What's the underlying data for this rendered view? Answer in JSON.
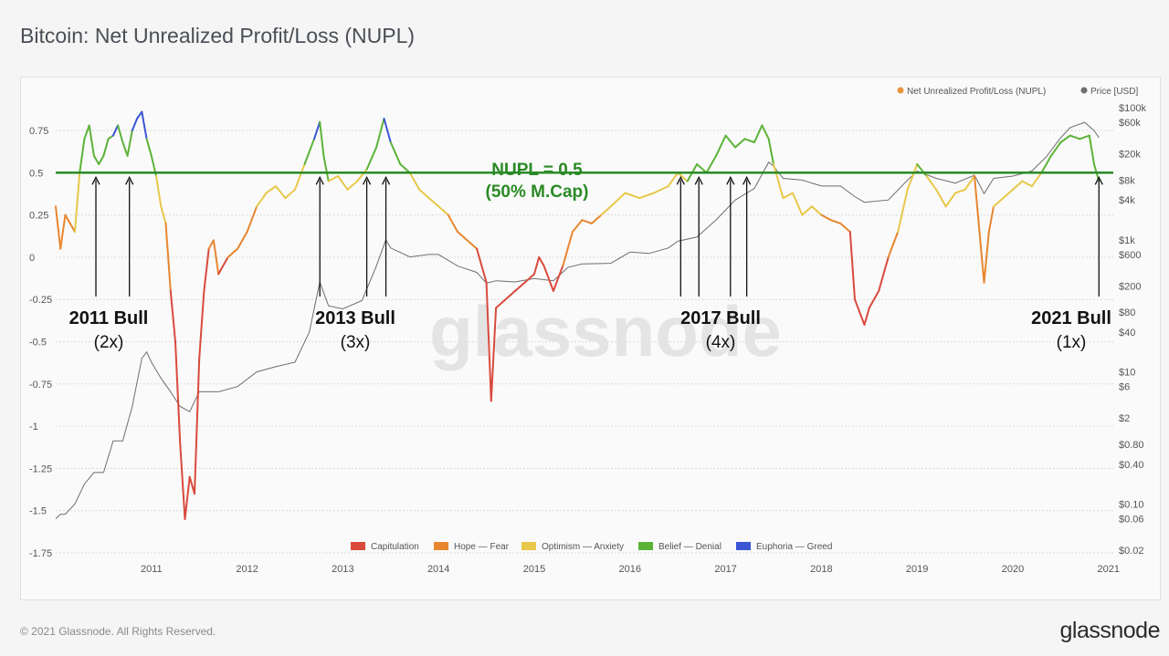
{
  "header": {
    "title": "Bitcoin: Net Unrealized Profit/Loss (NUPL)"
  },
  "footer": {
    "copyright": "© 2021 Glassnode. All Rights Reserved.",
    "brand": "glassnode"
  },
  "chart_data": {
    "type": "line",
    "title": "Bitcoin: Net Unrealized Profit/Loss (NUPL)",
    "watermark": "glassnode",
    "x_ticks": [
      "2011",
      "2012",
      "2013",
      "2014",
      "2015",
      "2016",
      "2017",
      "2018",
      "2019",
      "2020",
      "2021"
    ],
    "y_left": {
      "label": "Net Unrealized Profit/Loss (NUPL)",
      "ticks": [
        "0.75",
        "0.5",
        "0.25",
        "0",
        "-0.25",
        "-0.5",
        "-0.75",
        "-1",
        "-1.25",
        "-1.5",
        "-1.75"
      ],
      "range": [
        -1.75,
        0.9
      ]
    },
    "y_right": {
      "label": "Price [USD]",
      "scale": "log",
      "ticks": [
        "$100k",
        "$60k",
        "$20k",
        "$8k",
        "$4k",
        "$1k",
        "$600",
        "$200",
        "$80",
        "$40",
        "$10",
        "$6",
        "$2",
        "$0.80",
        "$0.40",
        "$0.10",
        "$0.06",
        "$0.02"
      ]
    },
    "legend_top": [
      {
        "name": "Net Unrealized Profit/Loss (NUPL)",
        "color": "#e8943a"
      },
      {
        "name": "Price [USD]",
        "color": "#6e6e6e"
      }
    ],
    "zones": [
      {
        "name": "Capitulation",
        "color": "#d94a3d",
        "max": 0
      },
      {
        "name": "Hope — Fear",
        "color": "#e8862f",
        "max": 0.25
      },
      {
        "name": "Optimism — Anxiety",
        "color": "#e8c84a",
        "max": 0.5
      },
      {
        "name": "Belief — Denial",
        "color": "#5cb338",
        "max": 0.75
      },
      {
        "name": "Euphoria — Greed",
        "color": "#3a56d4",
        "max": 1
      }
    ],
    "reference_line": {
      "value": 0.5,
      "label": "NUPL = 0.5",
      "sublabel": "(50% M.Cap)",
      "color": "#2a8a26"
    },
    "annotations": [
      {
        "label": "2011 Bull",
        "multiplier": "(2x)"
      },
      {
        "label": "2013 Bull",
        "multiplier": "(3x)"
      },
      {
        "label": "2017 Bull",
        "multiplier": "(4x)"
      },
      {
        "label": "2021 Bull",
        "multiplier": "(1x)"
      }
    ],
    "arrow_dates": [
      2010.92,
      2011.27,
      2013.26,
      2013.75,
      2013.95,
      2017.03,
      2017.22,
      2017.55,
      2017.72,
      2021.4
    ],
    "nupl_series": [
      [
        2010.5,
        0.3
      ],
      [
        2010.55,
        0.05
      ],
      [
        2010.6,
        0.25
      ],
      [
        2010.7,
        0.15
      ],
      [
        2010.75,
        0.5
      ],
      [
        2010.8,
        0.7
      ],
      [
        2010.85,
        0.78
      ],
      [
        2010.9,
        0.6
      ],
      [
        2010.95,
        0.55
      ],
      [
        2011.0,
        0.6
      ],
      [
        2011.05,
        0.7
      ],
      [
        2011.1,
        0.72
      ],
      [
        2011.15,
        0.78
      ],
      [
        2011.2,
        0.68
      ],
      [
        2011.25,
        0.6
      ],
      [
        2011.3,
        0.75
      ],
      [
        2011.35,
        0.82
      ],
      [
        2011.4,
        0.86
      ],
      [
        2011.45,
        0.7
      ],
      [
        2011.5,
        0.6
      ],
      [
        2011.55,
        0.48
      ],
      [
        2011.6,
        0.3
      ],
      [
        2011.65,
        0.2
      ],
      [
        2011.7,
        -0.2
      ],
      [
        2011.75,
        -0.5
      ],
      [
        2011.8,
        -1.1
      ],
      [
        2011.85,
        -1.55
      ],
      [
        2011.9,
        -1.3
      ],
      [
        2011.95,
        -1.4
      ],
      [
        2012.0,
        -0.6
      ],
      [
        2012.05,
        -0.2
      ],
      [
        2012.1,
        0.05
      ],
      [
        2012.15,
        0.1
      ],
      [
        2012.2,
        -0.1
      ],
      [
        2012.3,
        0.0
      ],
      [
        2012.4,
        0.05
      ],
      [
        2012.5,
        0.15
      ],
      [
        2012.6,
        0.3
      ],
      [
        2012.7,
        0.38
      ],
      [
        2012.8,
        0.42
      ],
      [
        2012.9,
        0.35
      ],
      [
        2013.0,
        0.4
      ],
      [
        2013.1,
        0.55
      ],
      [
        2013.2,
        0.7
      ],
      [
        2013.26,
        0.8
      ],
      [
        2013.3,
        0.6
      ],
      [
        2013.35,
        0.45
      ],
      [
        2013.45,
        0.48
      ],
      [
        2013.55,
        0.4
      ],
      [
        2013.65,
        0.45
      ],
      [
        2013.75,
        0.52
      ],
      [
        2013.85,
        0.65
      ],
      [
        2013.93,
        0.82
      ],
      [
        2014.0,
        0.68
      ],
      [
        2014.1,
        0.55
      ],
      [
        2014.2,
        0.5
      ],
      [
        2014.3,
        0.4
      ],
      [
        2014.4,
        0.35
      ],
      [
        2014.5,
        0.3
      ],
      [
        2014.6,
        0.25
      ],
      [
        2014.7,
        0.15
      ],
      [
        2014.8,
        0.1
      ],
      [
        2014.9,
        0.05
      ],
      [
        2015.0,
        -0.15
      ],
      [
        2015.05,
        -0.85
      ],
      [
        2015.1,
        -0.3
      ],
      [
        2015.2,
        -0.25
      ],
      [
        2015.3,
        -0.2
      ],
      [
        2015.4,
        -0.15
      ],
      [
        2015.5,
        -0.1
      ],
      [
        2015.55,
        0.0
      ],
      [
        2015.6,
        -0.05
      ],
      [
        2015.7,
        -0.2
      ],
      [
        2015.8,
        -0.05
      ],
      [
        2015.9,
        0.15
      ],
      [
        2016.0,
        0.22
      ],
      [
        2016.1,
        0.2
      ],
      [
        2016.2,
        0.25
      ],
      [
        2016.3,
        0.3
      ],
      [
        2016.45,
        0.38
      ],
      [
        2016.6,
        0.35
      ],
      [
        2016.75,
        0.38
      ],
      [
        2016.9,
        0.42
      ],
      [
        2017.0,
        0.5
      ],
      [
        2017.1,
        0.45
      ],
      [
        2017.2,
        0.55
      ],
      [
        2017.3,
        0.5
      ],
      [
        2017.4,
        0.6
      ],
      [
        2017.5,
        0.72
      ],
      [
        2017.6,
        0.65
      ],
      [
        2017.7,
        0.7
      ],
      [
        2017.8,
        0.68
      ],
      [
        2017.88,
        0.78
      ],
      [
        2017.95,
        0.7
      ],
      [
        2018.0,
        0.55
      ],
      [
        2018.1,
        0.35
      ],
      [
        2018.2,
        0.38
      ],
      [
        2018.3,
        0.25
      ],
      [
        2018.4,
        0.3
      ],
      [
        2018.5,
        0.25
      ],
      [
        2018.6,
        0.22
      ],
      [
        2018.7,
        0.2
      ],
      [
        2018.8,
        0.15
      ],
      [
        2018.85,
        -0.25
      ],
      [
        2018.95,
        -0.4
      ],
      [
        2019.0,
        -0.3
      ],
      [
        2019.1,
        -0.2
      ],
      [
        2019.2,
        0.0
      ],
      [
        2019.3,
        0.15
      ],
      [
        2019.4,
        0.4
      ],
      [
        2019.5,
        0.55
      ],
      [
        2019.6,
        0.48
      ],
      [
        2019.7,
        0.4
      ],
      [
        2019.8,
        0.3
      ],
      [
        2019.9,
        0.38
      ],
      [
        2020.0,
        0.4
      ],
      [
        2020.1,
        0.48
      ],
      [
        2020.2,
        -0.15
      ],
      [
        2020.25,
        0.15
      ],
      [
        2020.3,
        0.3
      ],
      [
        2020.4,
        0.35
      ],
      [
        2020.5,
        0.4
      ],
      [
        2020.6,
        0.45
      ],
      [
        2020.7,
        0.42
      ],
      [
        2020.8,
        0.5
      ],
      [
        2020.9,
        0.6
      ],
      [
        2021.0,
        0.68
      ],
      [
        2021.1,
        0.72
      ],
      [
        2021.2,
        0.7
      ],
      [
        2021.3,
        0.72
      ],
      [
        2021.35,
        0.55
      ],
      [
        2021.4,
        0.45
      ]
    ],
    "price_series": [
      [
        2010.5,
        0.06
      ],
      [
        2010.55,
        0.07
      ],
      [
        2010.6,
        0.07
      ],
      [
        2010.7,
        0.1
      ],
      [
        2010.8,
        0.2
      ],
      [
        2010.9,
        0.3
      ],
      [
        2011.0,
        0.3
      ],
      [
        2011.1,
        0.9
      ],
      [
        2011.2,
        0.9
      ],
      [
        2011.3,
        3
      ],
      [
        2011.4,
        16
      ],
      [
        2011.45,
        20
      ],
      [
        2011.5,
        14
      ],
      [
        2011.6,
        8
      ],
      [
        2011.7,
        5
      ],
      [
        2011.8,
        3
      ],
      [
        2011.9,
        2.5
      ],
      [
        2012.0,
        5
      ],
      [
        2012.2,
        5
      ],
      [
        2012.4,
        6
      ],
      [
        2012.6,
        10
      ],
      [
        2012.8,
        12
      ],
      [
        2013.0,
        14
      ],
      [
        2013.15,
        40
      ],
      [
        2013.26,
        230
      ],
      [
        2013.35,
        100
      ],
      [
        2013.5,
        90
      ],
      [
        2013.7,
        120
      ],
      [
        2013.85,
        400
      ],
      [
        2013.95,
        1000
      ],
      [
        2014.0,
        750
      ],
      [
        2014.2,
        550
      ],
      [
        2014.4,
        600
      ],
      [
        2014.5,
        600
      ],
      [
        2014.7,
        400
      ],
      [
        2014.9,
        320
      ],
      [
        2015.0,
        220
      ],
      [
        2015.1,
        240
      ],
      [
        2015.3,
        230
      ],
      [
        2015.5,
        260
      ],
      [
        2015.7,
        240
      ],
      [
        2015.85,
        380
      ],
      [
        2016.0,
        430
      ],
      [
        2016.3,
        440
      ],
      [
        2016.5,
        650
      ],
      [
        2016.7,
        620
      ],
      [
        2016.9,
        750
      ],
      [
        2017.0,
        950
      ],
      [
        2017.2,
        1100
      ],
      [
        2017.4,
        2000
      ],
      [
        2017.6,
        4000
      ],
      [
        2017.8,
        6000
      ],
      [
        2017.95,
        15000
      ],
      [
        2018.0,
        13000
      ],
      [
        2018.1,
        8500
      ],
      [
        2018.3,
        8000
      ],
      [
        2018.5,
        6500
      ],
      [
        2018.7,
        6500
      ],
      [
        2018.85,
        4500
      ],
      [
        2018.95,
        3700
      ],
      [
        2019.2,
        4000
      ],
      [
        2019.4,
        8000
      ],
      [
        2019.5,
        11000
      ],
      [
        2019.7,
        8500
      ],
      [
        2019.9,
        7200
      ],
      [
        2020.1,
        9500
      ],
      [
        2020.2,
        5000
      ],
      [
        2020.3,
        8500
      ],
      [
        2020.5,
        9200
      ],
      [
        2020.7,
        11000
      ],
      [
        2020.85,
        18000
      ],
      [
        2021.0,
        35000
      ],
      [
        2021.1,
        50000
      ],
      [
        2021.25,
        60000
      ],
      [
        2021.35,
        45000
      ],
      [
        2021.4,
        35000
      ]
    ]
  }
}
